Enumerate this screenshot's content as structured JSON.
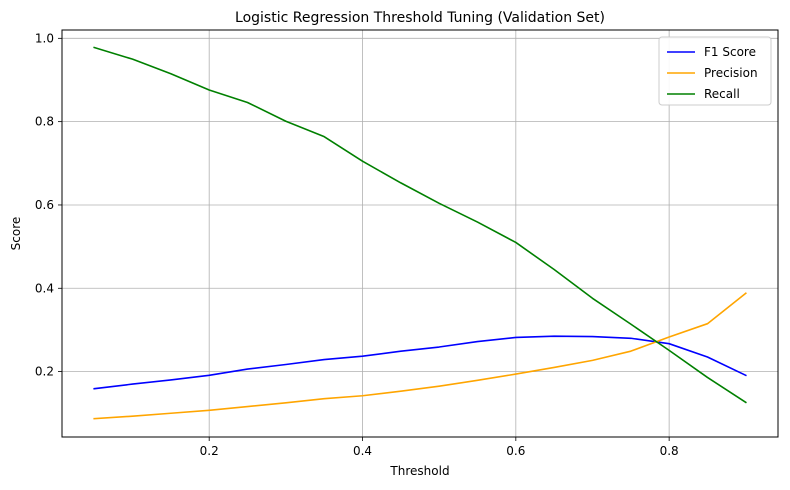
{
  "chart_data": {
    "type": "line",
    "title": "Logistic Regression Threshold Tuning (Validation Set)",
    "xlabel": "Threshold",
    "ylabel": "Score",
    "xlim": [
      0.008,
      0.942
    ],
    "ylim": [
      0.043,
      1.02
    ],
    "xticks": [
      0.2,
      0.4,
      0.6,
      0.8
    ],
    "yticks": [
      0.2,
      0.4,
      0.6,
      0.8,
      1.0
    ],
    "xtick_labels": [
      "0.2",
      "0.4",
      "0.6",
      "0.8"
    ],
    "ytick_labels": [
      "0.2",
      "0.4",
      "0.6",
      "0.8",
      "1.0"
    ],
    "grid": true,
    "legend_position": "top-right",
    "x": [
      0.05,
      0.1,
      0.15,
      0.2,
      0.25,
      0.3,
      0.35,
      0.4,
      0.45,
      0.5,
      0.55,
      0.6,
      0.65,
      0.7,
      0.75,
      0.8,
      0.85,
      0.9
    ],
    "series": [
      {
        "name": "F1 Score",
        "color": "#0000ff",
        "values": [
          0.159,
          0.17,
          0.18,
          0.191,
          0.206,
          0.217,
          0.229,
          0.237,
          0.249,
          0.259,
          0.272,
          0.282,
          0.285,
          0.284,
          0.28,
          0.267,
          0.235,
          0.191
        ]
      },
      {
        "name": "Precision",
        "color": "#ffa500",
        "values": [
          0.087,
          0.093,
          0.1,
          0.107,
          0.116,
          0.125,
          0.135,
          0.142,
          0.153,
          0.165,
          0.179,
          0.194,
          0.21,
          0.227,
          0.249,
          0.283,
          0.315,
          0.388
        ]
      },
      {
        "name": "Recall",
        "color": "#008000",
        "values": [
          0.978,
          0.95,
          0.915,
          0.876,
          0.846,
          0.801,
          0.764,
          0.705,
          0.653,
          0.604,
          0.559,
          0.51,
          0.445,
          0.376,
          0.314,
          0.251,
          0.186,
          0.126
        ]
      }
    ]
  }
}
